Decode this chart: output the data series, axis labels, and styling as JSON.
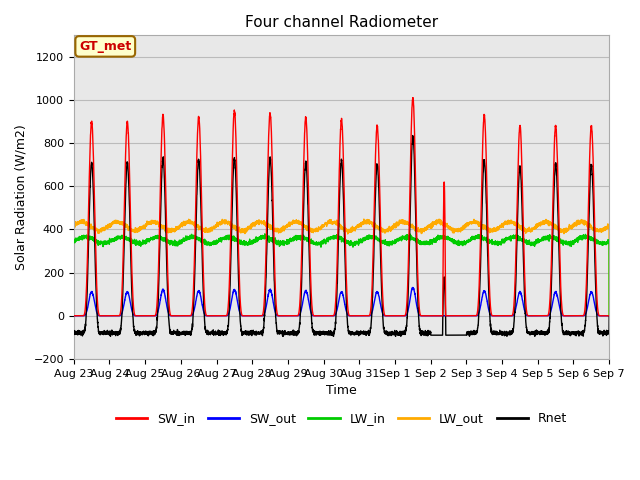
{
  "title": "Four channel Radiometer",
  "xlabel": "Time",
  "ylabel": "Solar Radiation (W/m2)",
  "ylim": [
    -200,
    1300
  ],
  "yticks": [
    -200,
    0,
    200,
    400,
    600,
    800,
    1000,
    1200
  ],
  "x_labels": [
    "Aug 23",
    "Aug 24",
    "Aug 25",
    "Aug 26",
    "Aug 27",
    "Aug 28",
    "Aug 29",
    "Aug 30",
    "Aug 31",
    "Sep 1",
    "Sep 2",
    "Sep 3",
    "Sep 4",
    "Sep 5",
    "Sep 6",
    "Sep 7"
  ],
  "n_days": 15,
  "colors": {
    "SW_in": "#ff0000",
    "SW_out": "#0000ff",
    "LW_in": "#00cc00",
    "LW_out": "#ffaa00",
    "Rnet": "#000000"
  },
  "legend_label": "GT_met",
  "legend_box_color": "#ffffcc",
  "legend_box_edge": "#996600",
  "legend_text_color": "#cc0000",
  "background_inner": "#e8e8e8",
  "background_outer": "#ffffff",
  "grid_color": "#cccccc",
  "sw_in_peaks": [
    900,
    900,
    930,
    920,
    950,
    940,
    920,
    910,
    880,
    1010,
    620,
    930,
    880,
    880,
    880
  ],
  "sw_out_peaks": [
    110,
    110,
    120,
    115,
    120,
    120,
    115,
    110,
    110,
    130,
    80,
    115,
    110,
    110,
    110
  ],
  "rnet_peaks": [
    710,
    710,
    730,
    720,
    730,
    730,
    710,
    720,
    700,
    830,
    0,
    720,
    690,
    700,
    700
  ],
  "lw_in_base": 350,
  "lw_out_base": 415,
  "night_rnet": -80,
  "figsize": [
    6.4,
    4.8
  ],
  "dpi": 100
}
